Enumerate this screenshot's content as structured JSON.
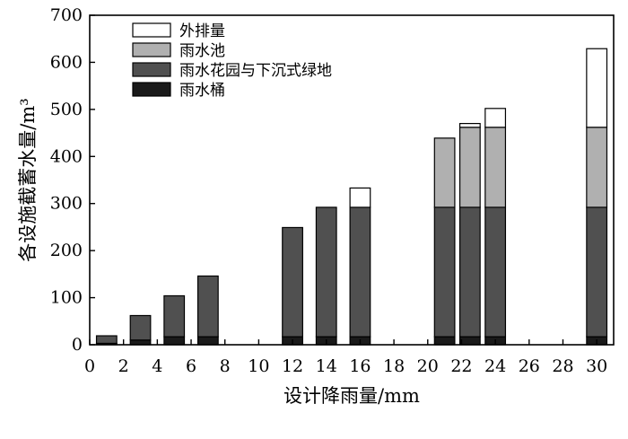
{
  "chart_data": {
    "type": "bar",
    "stacked": true,
    "xlabel": "设计降雨量/mm",
    "ylabel": "各设施截蓄水量/m³",
    "xlim": [
      0,
      31
    ],
    "ylim": [
      0,
      700
    ],
    "xticks": [
      0,
      2,
      4,
      6,
      8,
      10,
      12,
      14,
      16,
      18,
      20,
      22,
      24,
      26,
      28,
      30
    ],
    "yticks": [
      0,
      100,
      200,
      300,
      400,
      500,
      600,
      700
    ],
    "bar_width": 1.2,
    "legend_position": "top-left",
    "x": [
      1,
      3,
      5,
      7,
      12,
      14,
      16,
      21,
      22.5,
      24,
      30
    ],
    "series": [
      {
        "name": "雨水桶",
        "color": "#1a1a1a",
        "values": [
          3,
          10,
          17,
          17,
          17,
          17,
          17,
          17,
          17,
          17,
          17
        ]
      },
      {
        "name": "雨水花园与下沉式绿地",
        "color": "#505050",
        "values": [
          16,
          52,
          87,
          129,
          232,
          275,
          275,
          275,
          275,
          275,
          275
        ]
      },
      {
        "name": "雨水池",
        "color": "#b0b0b0",
        "values": [
          0,
          0,
          0,
          0,
          0,
          0,
          0,
          147,
          170,
          170,
          170
        ]
      },
      {
        "name": "外排量",
        "color": "#ffffff",
        "values": [
          0,
          0,
          0,
          0,
          0,
          0,
          41,
          0,
          8,
          40,
          167
        ]
      }
    ]
  }
}
